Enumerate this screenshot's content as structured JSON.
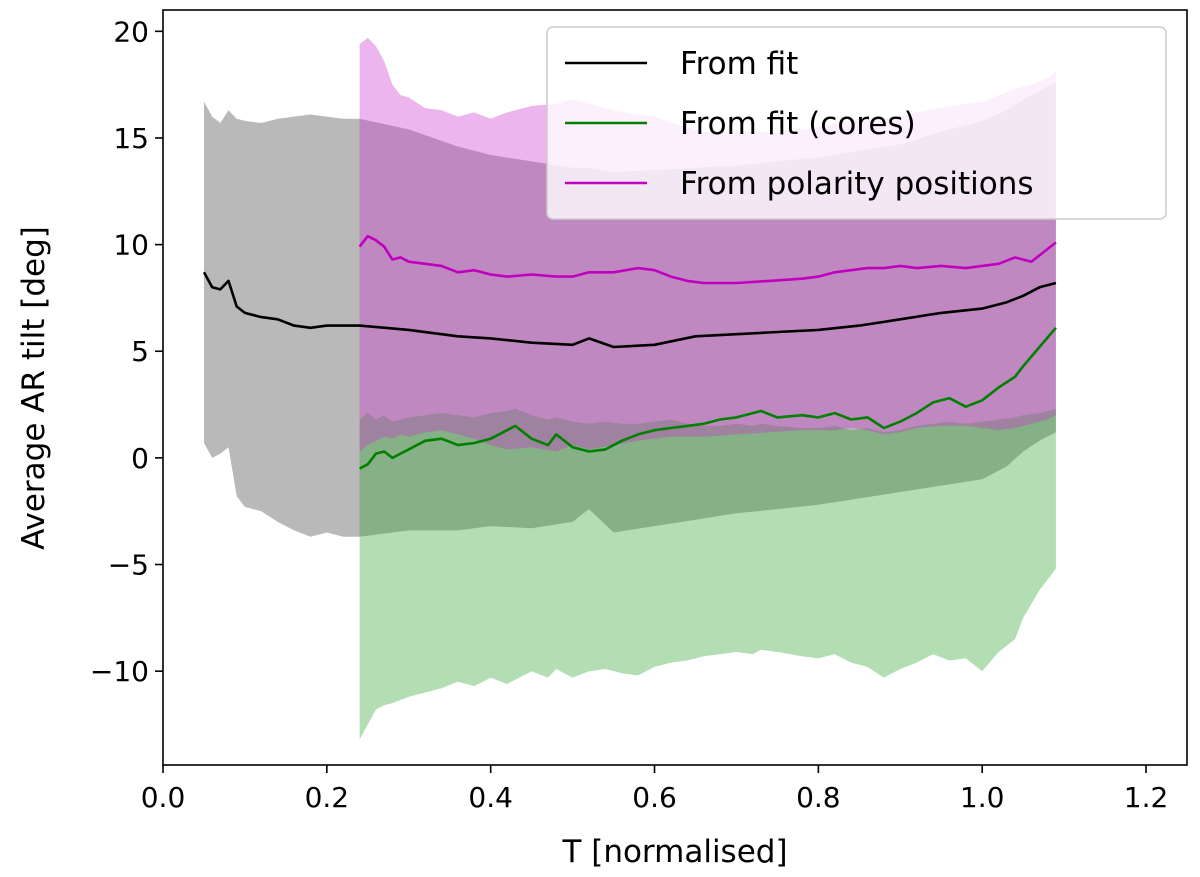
{
  "chart_data": {
    "type": "line",
    "title": "",
    "xlabel": "T [normalised]",
    "ylabel": "Average AR tilt [deg]",
    "xlim": [
      0.0,
      1.25
    ],
    "ylim": [
      -14.4,
      21.0
    ],
    "grid": false,
    "legend_placement": "top-right",
    "x_ticks": [
      {
        "value": 0.0,
        "label": "0.0"
      },
      {
        "value": 0.2,
        "label": "0.2"
      },
      {
        "value": 0.4,
        "label": "0.4"
      },
      {
        "value": 0.6,
        "label": "0.6"
      },
      {
        "value": 0.8,
        "label": "0.8"
      },
      {
        "value": 1.0,
        "label": "1.0"
      },
      {
        "value": 1.2,
        "label": "1.2"
      }
    ],
    "y_ticks": [
      {
        "value": -10,
        "label": "−10"
      },
      {
        "value": -5,
        "label": "−5"
      },
      {
        "value": 0,
        "label": "0"
      },
      {
        "value": 5,
        "label": "5"
      },
      {
        "value": 10,
        "label": "10"
      },
      {
        "value": 15,
        "label": "15"
      },
      {
        "value": 20,
        "label": "20"
      }
    ],
    "series": [
      {
        "name": "From fit",
        "color": "#000000",
        "band_color": "#808080",
        "band_opacity": 0.55,
        "x": [
          0.05,
          0.06,
          0.07,
          0.08,
          0.09,
          0.1,
          0.12,
          0.14,
          0.16,
          0.18,
          0.2,
          0.22,
          0.24,
          0.3,
          0.36,
          0.4,
          0.45,
          0.5,
          0.52,
          0.55,
          0.6,
          0.65,
          0.7,
          0.75,
          0.8,
          0.85,
          0.9,
          0.95,
          1.0,
          1.03,
          1.05,
          1.07,
          1.09
        ],
        "y": [
          8.7,
          8.0,
          7.9,
          8.3,
          7.1,
          6.8,
          6.6,
          6.5,
          6.2,
          6.1,
          6.2,
          6.2,
          6.2,
          6.0,
          5.7,
          5.6,
          5.4,
          5.3,
          5.6,
          5.2,
          5.3,
          5.7,
          5.8,
          5.9,
          6.0,
          6.2,
          6.5,
          6.8,
          7.0,
          7.3,
          7.6,
          8.0,
          8.2
        ],
        "upper": [
          16.7,
          16.0,
          15.7,
          16.3,
          15.9,
          15.8,
          15.7,
          15.9,
          16.0,
          16.1,
          16.0,
          15.9,
          15.9,
          15.4,
          14.6,
          14.2,
          13.9,
          13.6,
          13.6,
          13.4,
          13.5,
          13.6,
          13.7,
          13.9,
          14.1,
          14.4,
          14.7,
          15.3,
          15.8,
          16.3,
          16.8,
          17.2,
          17.6
        ],
        "lower": [
          0.7,
          0.0,
          0.2,
          0.5,
          -1.8,
          -2.3,
          -2.5,
          -3.0,
          -3.4,
          -3.7,
          -3.5,
          -3.7,
          -3.7,
          -3.4,
          -3.4,
          -3.2,
          -3.3,
          -3.0,
          -2.4,
          -3.5,
          -3.2,
          -2.9,
          -2.6,
          -2.4,
          -2.2,
          -1.9,
          -1.6,
          -1.3,
          -1.0,
          -0.4,
          0.3,
          0.8,
          1.2
        ]
      },
      {
        "name": "From fit (cores)",
        "color": "#008000",
        "band_color": "#2ca02c",
        "band_opacity": 0.36,
        "x": [
          0.24,
          0.25,
          0.26,
          0.27,
          0.28,
          0.3,
          0.32,
          0.34,
          0.36,
          0.38,
          0.4,
          0.42,
          0.43,
          0.45,
          0.47,
          0.48,
          0.5,
          0.52,
          0.54,
          0.56,
          0.58,
          0.6,
          0.62,
          0.64,
          0.66,
          0.68,
          0.7,
          0.72,
          0.73,
          0.75,
          0.78,
          0.8,
          0.82,
          0.84,
          0.86,
          0.88,
          0.9,
          0.92,
          0.94,
          0.96,
          0.98,
          1.0,
          1.02,
          1.04,
          1.05,
          1.07,
          1.09
        ],
        "y": [
          -0.5,
          -0.3,
          0.2,
          0.3,
          0.0,
          0.4,
          0.8,
          0.9,
          0.6,
          0.7,
          0.9,
          1.3,
          1.5,
          0.9,
          0.6,
          1.1,
          0.5,
          0.3,
          0.4,
          0.8,
          1.1,
          1.3,
          1.4,
          1.5,
          1.6,
          1.8,
          1.9,
          2.1,
          2.2,
          1.9,
          2.0,
          1.9,
          2.1,
          1.8,
          1.9,
          1.4,
          1.7,
          2.1,
          2.6,
          2.8,
          2.4,
          2.7,
          3.3,
          3.8,
          4.3,
          5.2,
          6.1
        ],
        "upper": [
          1.8,
          2.1,
          1.8,
          2.0,
          1.7,
          1.9,
          2.0,
          2.1,
          2.0,
          1.9,
          2.1,
          2.2,
          2.3,
          2.0,
          1.8,
          1.9,
          1.7,
          1.6,
          1.7,
          1.6,
          1.6,
          1.7,
          1.8,
          1.6,
          1.5,
          1.5,
          1.6,
          1.5,
          1.6,
          1.5,
          1.4,
          1.4,
          1.5,
          1.3,
          1.4,
          1.2,
          1.3,
          1.5,
          1.6,
          1.7,
          1.6,
          1.7,
          1.8,
          1.9,
          2.0,
          2.1,
          2.3
        ],
        "lower": [
          -13.2,
          -12.5,
          -11.8,
          -11.6,
          -11.5,
          -11.2,
          -11.0,
          -10.8,
          -10.5,
          -10.7,
          -10.3,
          -10.6,
          -10.4,
          -10.0,
          -10.3,
          -9.9,
          -10.3,
          -10.0,
          -9.9,
          -10.1,
          -10.2,
          -9.8,
          -9.6,
          -9.5,
          -9.3,
          -9.2,
          -9.1,
          -9.2,
          -9.0,
          -9.1,
          -9.3,
          -9.4,
          -9.2,
          -9.6,
          -9.8,
          -10.3,
          -9.9,
          -9.6,
          -9.2,
          -9.5,
          -9.4,
          -10.0,
          -9.1,
          -8.5,
          -7.5,
          -6.2,
          -5.2
        ]
      },
      {
        "name": "From polarity positions",
        "color": "#bf00bf",
        "band_color": "#cc33cc",
        "band_opacity": 0.36,
        "x": [
          0.24,
          0.25,
          0.26,
          0.27,
          0.28,
          0.29,
          0.3,
          0.32,
          0.34,
          0.36,
          0.38,
          0.4,
          0.42,
          0.45,
          0.48,
          0.5,
          0.52,
          0.55,
          0.58,
          0.6,
          0.62,
          0.64,
          0.66,
          0.7,
          0.74,
          0.78,
          0.8,
          0.82,
          0.84,
          0.86,
          0.88,
          0.9,
          0.92,
          0.95,
          0.98,
          1.0,
          1.02,
          1.04,
          1.06,
          1.08,
          1.09
        ],
        "y": [
          9.9,
          10.4,
          10.2,
          9.9,
          9.3,
          9.4,
          9.2,
          9.1,
          9.0,
          8.7,
          8.8,
          8.6,
          8.5,
          8.6,
          8.5,
          8.5,
          8.7,
          8.7,
          8.9,
          8.8,
          8.5,
          8.3,
          8.2,
          8.2,
          8.3,
          8.4,
          8.5,
          8.7,
          8.8,
          8.9,
          8.9,
          9.0,
          8.9,
          9.0,
          8.9,
          9.0,
          9.1,
          9.4,
          9.2,
          9.8,
          10.1
        ],
        "upper": [
          19.4,
          19.7,
          19.3,
          18.6,
          17.5,
          17.0,
          16.9,
          16.4,
          16.3,
          16.0,
          16.2,
          15.9,
          16.2,
          16.5,
          16.6,
          16.8,
          16.6,
          16.3,
          16.1,
          16.0,
          15.7,
          15.5,
          15.3,
          15.3,
          15.3,
          15.4,
          15.5,
          15.7,
          15.8,
          16.0,
          15.9,
          16.0,
          16.2,
          16.4,
          16.6,
          16.7,
          17.0,
          17.3,
          17.5,
          17.8,
          18.1
        ],
        "lower": [
          0.3,
          0.6,
          0.8,
          1.0,
          0.9,
          1.1,
          1.0,
          1.2,
          1.3,
          1.1,
          0.9,
          0.6,
          0.4,
          0.5,
          0.3,
          0.6,
          0.4,
          0.6,
          0.8,
          0.9,
          1.0,
          1.0,
          1.0,
          1.1,
          1.2,
          1.3,
          1.3,
          1.3,
          1.4,
          1.3,
          1.1,
          1.2,
          1.4,
          1.5,
          1.5,
          1.4,
          1.3,
          1.4,
          1.6,
          1.8,
          2.0
        ]
      }
    ]
  }
}
